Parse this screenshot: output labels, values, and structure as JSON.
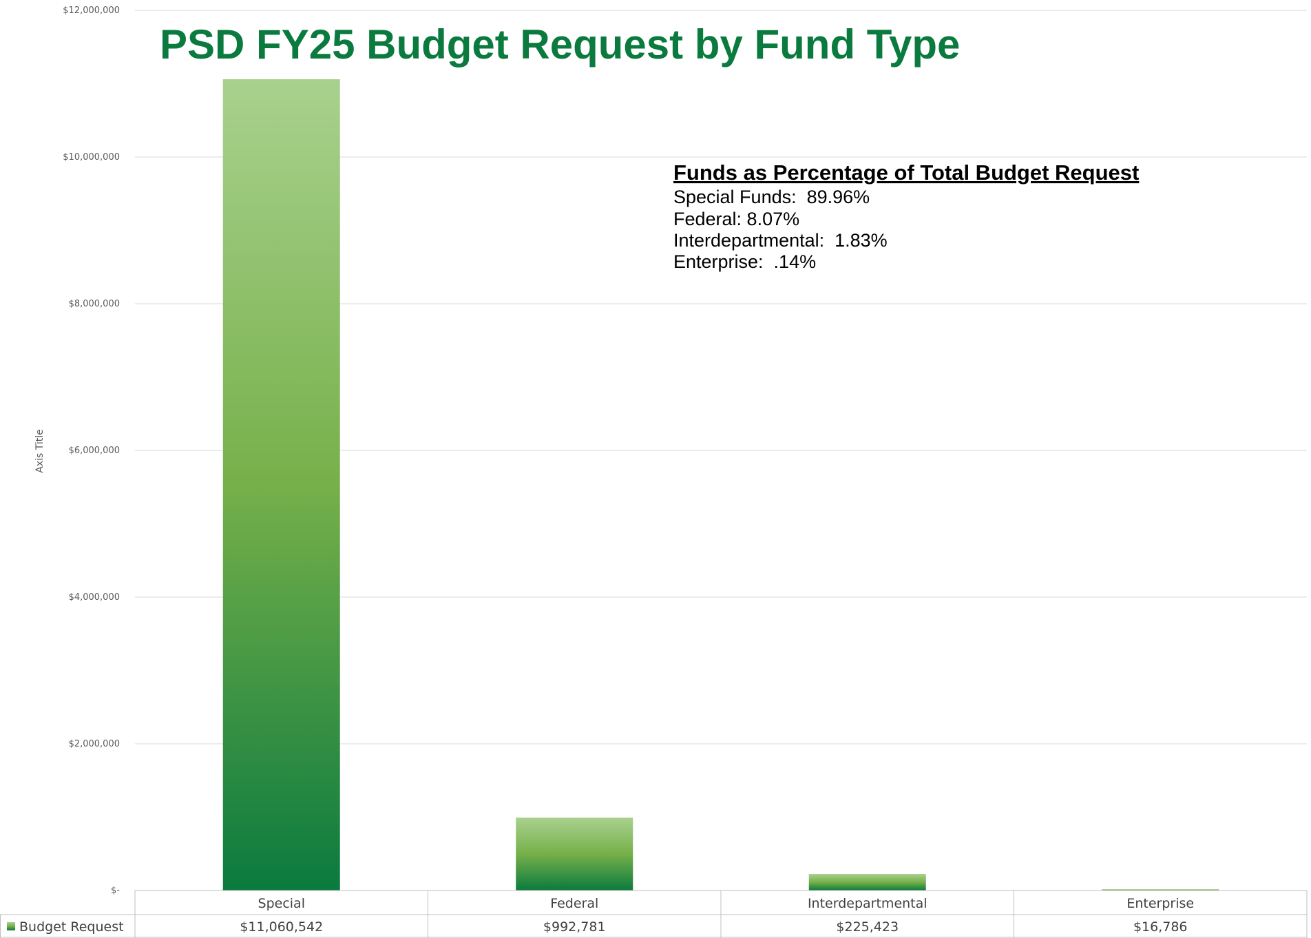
{
  "chart_data": {
    "type": "bar",
    "title": "PSD FY25 Budget Request by Fund Type",
    "ylabel": "Axis Title",
    "ylim": [
      0,
      12000000
    ],
    "y_ticks": [
      0,
      2000000,
      4000000,
      6000000,
      8000000,
      10000000,
      12000000
    ],
    "y_tick_labels": [
      "$-",
      "$2,000,000",
      "$4,000,000",
      "$6,000,000",
      "$8,000,000",
      "$10,000,000",
      "$12,000,000"
    ],
    "grid": true,
    "categories": [
      "Special",
      "Federal",
      "Interdepartmental",
      "Enterprise"
    ],
    "series": [
      {
        "name": "Budget Request",
        "values": [
          11060542,
          992781,
          225423,
          16786
        ],
        "value_labels": [
          "$11,060,542",
          "$992,781",
          "$225,423",
          "$16,786"
        ]
      }
    ],
    "legend_placement": "data-table",
    "colors": {
      "bar_top": "#a9d18e",
      "bar_mid": "#70ad47",
      "bar_bottom": "#0a7a3e",
      "title": "#0a7a3e",
      "grid": "#d9d9d9"
    },
    "annotation": {
      "heading": "Funds as Percentage of Total Budget Request",
      "lines": [
        "Special Funds:  89.96%",
        "Federal: 8.07%",
        "Interdepartmental:  1.83%",
        "Enterprise:  .14%"
      ]
    }
  }
}
